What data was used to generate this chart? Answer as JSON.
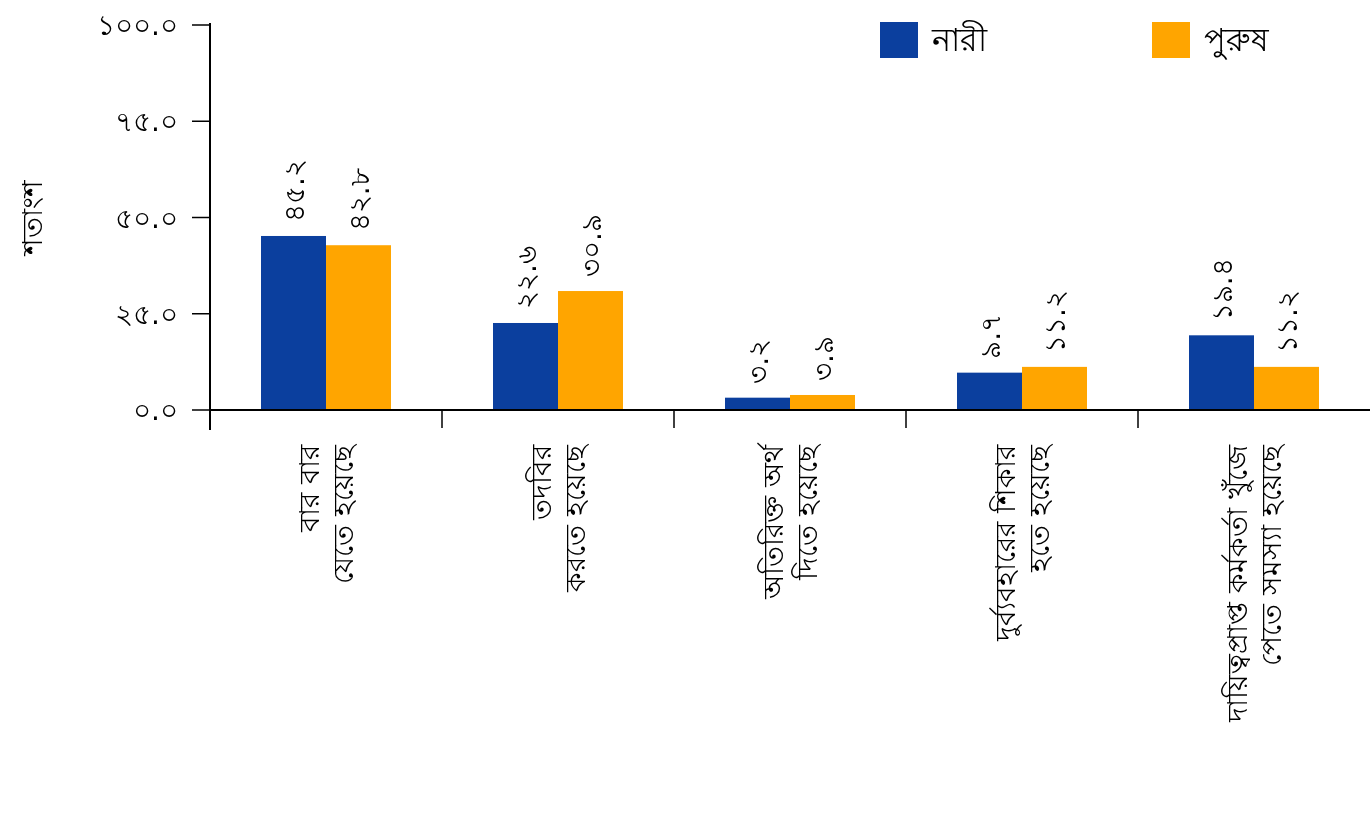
{
  "chart_data": {
    "type": "bar",
    "ylabel": "শতাংশ",
    "legend": "top right",
    "categories": [
      "বার বার\nযেতে হয়েছে",
      "তদবির\nকরতে হয়েছে",
      "অতিরিক্ত অর্থ\nদিতে হয়েছে",
      "দুর্ব্যবহারের শিকার\nহতে হয়েছে",
      "দায়িত্বপ্রাপ্ত কর্মকর্তা খুঁজে\nপেতে সমস্যা হয়েছে"
    ],
    "series": [
      {
        "name": "নারী",
        "color": "#0b3f9e",
        "values": [
          45.2,
          22.6,
          3.2,
          9.7,
          19.4
        ],
        "value_labels": [
          "৪৫.২",
          "২২.৬",
          "৩.২",
          "৯.৭",
          "১৯.৪"
        ]
      },
      {
        "name": "পুরুষ",
        "color": "#ffa500",
        "values": [
          42.8,
          30.9,
          3.9,
          11.2,
          11.2
        ],
        "value_labels": [
          "৪২.৮",
          "৩০.৯",
          "৩.৯",
          "১১.২",
          "১১.২"
        ]
      }
    ],
    "ylim": [
      0,
      100
    ],
    "yticks": [
      {
        "value": 0,
        "label": "০.০"
      },
      {
        "value": 25,
        "label": "২৫.০"
      },
      {
        "value": 50,
        "label": "৫০.০"
      },
      {
        "value": 75,
        "label": "৭৫.০"
      },
      {
        "value": 100,
        "label": "১০০.০"
      }
    ]
  }
}
